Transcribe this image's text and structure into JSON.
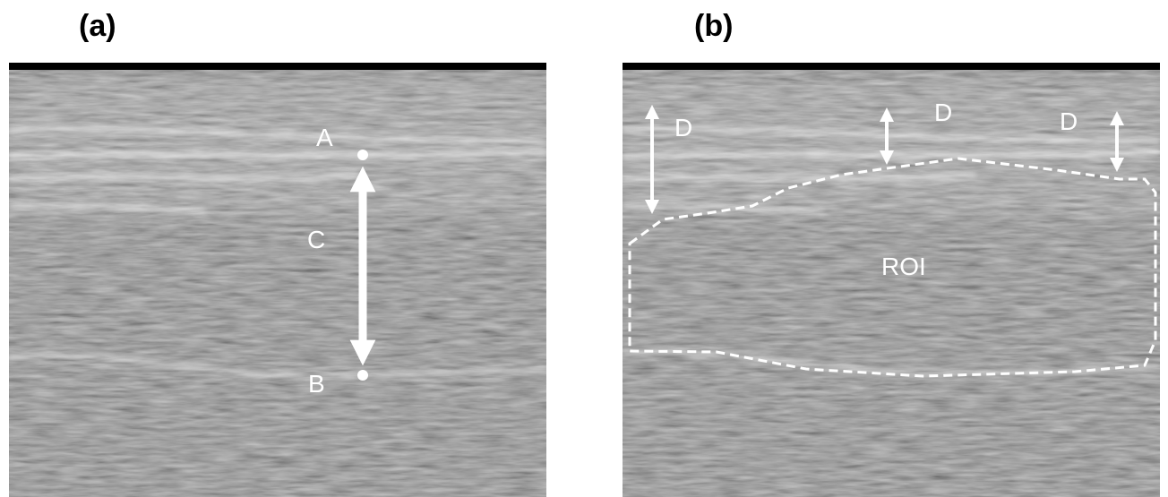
{
  "panels": [
    {
      "label": "(a)",
      "annotations": [
        "A",
        "C",
        "B"
      ]
    },
    {
      "label": "(b)",
      "annotations": [
        "D",
        "D",
        "D",
        "ROI"
      ]
    }
  ]
}
